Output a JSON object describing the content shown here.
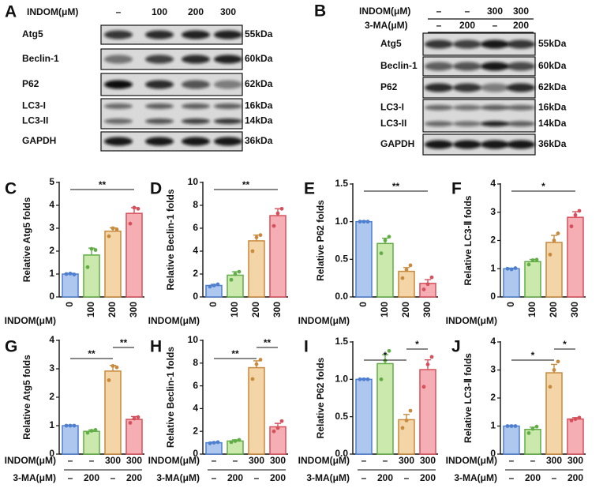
{
  "blots": [
    {
      "panel": "A",
      "treatments": [
        {
          "label": "INDOM(μM)",
          "values": [
            "–",
            "100",
            "200",
            "300"
          ]
        }
      ],
      "rows": [
        {
          "labels": [
            "Atg5"
          ],
          "sizes": [
            "55kDa"
          ]
        },
        {
          "labels": [
            "Beclin-1"
          ],
          "sizes": [
            "60kDa"
          ]
        },
        {
          "labels": [
            "P62"
          ],
          "sizes": [
            "62kDa"
          ]
        },
        {
          "labels": [
            "LC3-I",
            "LC3-II"
          ],
          "sizes": [
            "16kDa",
            "14kDa"
          ]
        },
        {
          "labels": [
            "GAPDH"
          ],
          "sizes": [
            "36kDa"
          ]
        }
      ]
    },
    {
      "panel": "B",
      "treatments": [
        {
          "label": "INDOM(μM)",
          "values": [
            "–",
            "–",
            "300",
            "300"
          ]
        },
        {
          "label": "3-MA(μM)",
          "values": [
            "–",
            "200",
            "–",
            "200"
          ]
        }
      ],
      "rows": [
        {
          "labels": [
            "Atg5"
          ],
          "sizes": [
            "55kDa"
          ]
        },
        {
          "labels": [
            "Beclin-1"
          ],
          "sizes": [
            "60kDa"
          ]
        },
        {
          "labels": [
            "P62"
          ],
          "sizes": [
            "62kDa"
          ]
        },
        {
          "labels": [
            "LC3-I",
            "LC3-II"
          ],
          "sizes": [
            "16kDa",
            "14kDa"
          ]
        },
        {
          "labels": [
            "GAPDH"
          ],
          "sizes": [
            "36kDa"
          ]
        }
      ]
    }
  ],
  "chart_data": [
    {
      "type": "bar",
      "panel": "C",
      "ylabel": "Relative Atg5 folds",
      "ylim": [
        0,
        5
      ],
      "yticks": [
        0,
        1,
        2,
        3,
        4,
        5
      ],
      "category_rows": [
        {
          "label": "INDOM(μM)",
          "values": [
            "0",
            "100",
            "200",
            "300"
          ]
        }
      ],
      "values": [
        1.0,
        1.83,
        2.87,
        3.65
      ],
      "errors": [
        0.03,
        0.3,
        0.15,
        0.25
      ],
      "points": [
        [
          1.0,
          1.02,
          0.98
        ],
        [
          1.3,
          2.1,
          2.05
        ],
        [
          2.65,
          3.0,
          2.95
        ],
        [
          3.2,
          3.9,
          3.85
        ]
      ],
      "colors": [
        "#aec7ee",
        "#cbe9ad",
        "#f3d5a8",
        "#f5aeb3"
      ],
      "edge_colors": [
        "#4f7fcf",
        "#62ad46",
        "#c88a3c",
        "#d6505c"
      ],
      "significance": [
        {
          "text": "**",
          "between": [
            0,
            3
          ]
        }
      ]
    },
    {
      "type": "bar",
      "panel": "D",
      "ylabel": "Relative Beclin-1 folds",
      "ylim": [
        0,
        10
      ],
      "yticks": [
        0,
        2,
        4,
        6,
        8,
        10
      ],
      "category_rows": [
        {
          "label": "INDOM(μM)",
          "values": [
            "0",
            "100",
            "200",
            "300"
          ]
        }
      ],
      "values": [
        1.0,
        1.9,
        4.9,
        7.1
      ],
      "errors": [
        0.1,
        0.3,
        0.5,
        0.6
      ],
      "points": [
        [
          0.9,
          1.0,
          1.1
        ],
        [
          1.5,
          2.0,
          2.2
        ],
        [
          4.0,
          5.2,
          5.4
        ],
        [
          6.2,
          7.3,
          7.7
        ]
      ],
      "colors": [
        "#aec7ee",
        "#cbe9ad",
        "#f3d5a8",
        "#f5aeb3"
      ],
      "edge_colors": [
        "#4f7fcf",
        "#62ad46",
        "#c88a3c",
        "#d6505c"
      ],
      "significance": [
        {
          "text": "**",
          "between": [
            0,
            3
          ]
        }
      ]
    },
    {
      "type": "bar",
      "panel": "E",
      "ylabel": "Relative P62 folds",
      "ylim": [
        0,
        1.5
      ],
      "yticks": [
        {
          "value": 0,
          "label": "0.0"
        },
        {
          "value": 0.5,
          "label": "0.5"
        },
        {
          "value": 1,
          "label": "1.0"
        },
        {
          "value": 1.5,
          "label": "1.5"
        }
      ],
      "category_rows": [
        {
          "label": "INDOM(μM)",
          "values": [
            "0",
            "100",
            "200",
            "300"
          ]
        }
      ],
      "values": [
        1.0,
        0.71,
        0.34,
        0.18
      ],
      "errors": [
        0.01,
        0.07,
        0.05,
        0.05
      ],
      "points": [
        [
          1.0,
          1.0,
          1.0
        ],
        [
          0.58,
          0.75,
          0.8
        ],
        [
          0.25,
          0.36,
          0.42
        ],
        [
          0.1,
          0.17,
          0.26
        ]
      ],
      "colors": [
        "#aec7ee",
        "#cbe9ad",
        "#f3d5a8",
        "#f5aeb3"
      ],
      "edge_colors": [
        "#4f7fcf",
        "#62ad46",
        "#c88a3c",
        "#d6505c"
      ],
      "significance": [
        {
          "text": "**",
          "between": [
            0,
            3
          ]
        }
      ]
    },
    {
      "type": "bar",
      "panel": "F",
      "ylabel": "Relative LC3-Ⅱ folds",
      "ylim": [
        0,
        4
      ],
      "yticks": [
        0,
        1,
        2,
        3,
        4
      ],
      "category_rows": [
        {
          "label": "INDOM(μM)",
          "values": [
            "0",
            "100",
            "200",
            "300"
          ]
        }
      ],
      "values": [
        1.0,
        1.25,
        1.93,
        2.82
      ],
      "errors": [
        0.02,
        0.08,
        0.25,
        0.2
      ],
      "points": [
        [
          1.0,
          0.98,
          1.02
        ],
        [
          1.15,
          1.3,
          1.32
        ],
        [
          1.5,
          2.0,
          2.25
        ],
        [
          2.5,
          2.9,
          3.05
        ]
      ],
      "colors": [
        "#aec7ee",
        "#cbe9ad",
        "#f3d5a8",
        "#f5aeb3"
      ],
      "edge_colors": [
        "#4f7fcf",
        "#62ad46",
        "#c88a3c",
        "#d6505c"
      ],
      "significance": [
        {
          "text": "*",
          "between": [
            0,
            3
          ]
        }
      ]
    },
    {
      "type": "bar",
      "panel": "G",
      "ylabel": "Relative Atg5 folds",
      "ylim": [
        0,
        4
      ],
      "yticks": [
        0,
        1,
        2,
        3,
        4
      ],
      "category_rows": [
        {
          "label": "INDOM(μM)",
          "values": [
            "–",
            "–",
            "300",
            "300"
          ]
        },
        {
          "label": "3-MA(μM)",
          "values": [
            "–",
            "200",
            "–",
            "200"
          ]
        }
      ],
      "values": [
        1.0,
        0.8,
        2.92,
        1.22
      ],
      "errors": [
        0.02,
        0.05,
        0.2,
        0.1
      ],
      "points": [
        [
          1.0,
          1.0,
          1.0
        ],
        [
          0.75,
          0.82,
          0.85
        ],
        [
          2.6,
          3.1,
          3.05
        ],
        [
          1.1,
          1.25,
          1.3
        ]
      ],
      "colors": [
        "#aec7ee",
        "#cbe9ad",
        "#f3d5a8",
        "#f5aeb3"
      ],
      "edge_colors": [
        "#4f7fcf",
        "#62ad46",
        "#c88a3c",
        "#d6505c"
      ],
      "significance": [
        {
          "text": "**",
          "between": [
            0,
            2
          ]
        },
        {
          "text": "**",
          "between": [
            2,
            3
          ]
        }
      ]
    },
    {
      "type": "bar",
      "panel": "H",
      "ylabel": "Relative Beclin-1 folds",
      "ylim": [
        0,
        10
      ],
      "yticks": [
        0,
        2,
        4,
        6,
        8,
        10
      ],
      "category_rows": [
        {
          "label": "INDOM(μM)",
          "values": [
            "–",
            "–",
            "300",
            "300"
          ]
        },
        {
          "label": "3-MA(μM)",
          "values": [
            "–",
            "200",
            "–",
            "200"
          ]
        }
      ],
      "values": [
        1.0,
        1.15,
        7.6,
        2.4
      ],
      "errors": [
        0.05,
        0.1,
        0.6,
        0.3
      ],
      "points": [
        [
          0.95,
          1.0,
          1.05
        ],
        [
          1.05,
          1.15,
          1.25
        ],
        [
          6.6,
          7.9,
          8.3
        ],
        [
          2.0,
          2.3,
          2.9
        ]
      ],
      "colors": [
        "#aec7ee",
        "#cbe9ad",
        "#f3d5a8",
        "#f5aeb3"
      ],
      "edge_colors": [
        "#4f7fcf",
        "#62ad46",
        "#c88a3c",
        "#d6505c"
      ],
      "significance": [
        {
          "text": "**",
          "between": [
            0,
            2
          ]
        },
        {
          "text": "**",
          "between": [
            2,
            3
          ]
        }
      ]
    },
    {
      "type": "bar",
      "panel": "I",
      "ylabel": "Relative P62 folds",
      "ylim": [
        0,
        1.5
      ],
      "yticks": [
        {
          "value": 0,
          "label": "0.0"
        },
        {
          "value": 0.5,
          "label": "0.5"
        },
        {
          "value": 1,
          "label": "1.0"
        },
        {
          "value": 1.5,
          "label": "1.5"
        }
      ],
      "category_rows": [
        {
          "label": "INDOM(μM)",
          "values": [
            "–",
            "–",
            "300",
            "300"
          ]
        },
        {
          "label": "3-MA(μM)",
          "values": [
            "–",
            "200",
            "–",
            "200"
          ]
        }
      ],
      "values": [
        1.0,
        1.21,
        0.46,
        1.13
      ],
      "errors": [
        0.01,
        0.12,
        0.07,
        0.13
      ],
      "points": [
        [
          1.0,
          1.0,
          1.0
        ],
        [
          1.0,
          1.25,
          1.38
        ],
        [
          0.35,
          0.45,
          0.58
        ],
        [
          0.9,
          1.2,
          1.3
        ]
      ],
      "colors": [
        "#aec7ee",
        "#cbe9ad",
        "#f3d5a8",
        "#f5aeb3"
      ],
      "edge_colors": [
        "#4f7fcf",
        "#62ad46",
        "#c88a3c",
        "#d6505c"
      ],
      "significance": [
        {
          "text": "*",
          "between": [
            0,
            2
          ]
        },
        {
          "text": "*",
          "between": [
            2,
            3
          ]
        }
      ]
    },
    {
      "type": "bar",
      "panel": "J",
      "ylabel": "Relative LC3-Ⅱ folds",
      "ylim": [
        0,
        4
      ],
      "yticks": [
        0,
        1,
        2,
        3,
        4
      ],
      "category_rows": [
        {
          "label": "INDOM(μM)",
          "values": [
            "–",
            "–",
            "300",
            "300"
          ]
        },
        {
          "label": "3-MA(μM)",
          "values": [
            "–",
            "200",
            "–",
            "200"
          ]
        }
      ],
      "values": [
        1.0,
        0.88,
        2.9,
        1.25
      ],
      "errors": [
        0.02,
        0.08,
        0.3,
        0.05
      ],
      "points": [
        [
          1.0,
          1.0,
          1.0
        ],
        [
          0.75,
          0.9,
          0.98
        ],
        [
          2.4,
          3.0,
          3.3
        ],
        [
          1.2,
          1.25,
          1.3
        ]
      ],
      "colors": [
        "#aec7ee",
        "#cbe9ad",
        "#f3d5a8",
        "#f5aeb3"
      ],
      "edge_colors": [
        "#4f7fcf",
        "#62ad46",
        "#c88a3c",
        "#d6505c"
      ],
      "significance": [
        {
          "text": "*",
          "between": [
            0,
            2
          ]
        },
        {
          "text": "*",
          "between": [
            2,
            3
          ]
        }
      ]
    }
  ]
}
